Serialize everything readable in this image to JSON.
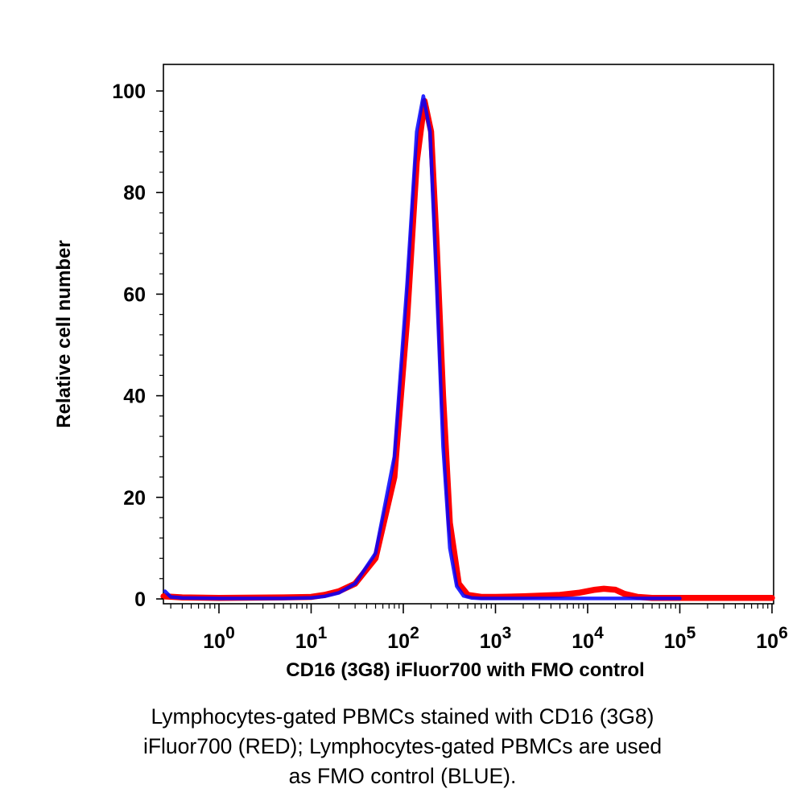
{
  "chart_data": {
    "type": "area",
    "xlabel": "CD16 (3G8) iFluor700 with FMO control",
    "ylabel": "Relative cell number",
    "x_scale": "log",
    "xlim": [
      0.2,
      2000000
    ],
    "ylim": [
      0,
      105
    ],
    "y_ticks": [
      "0",
      "20",
      "40",
      "60",
      "80",
      "100"
    ],
    "x_ticks": [
      {
        "base": "10",
        "exp": "0"
      },
      {
        "base": "10",
        "exp": "1"
      },
      {
        "base": "10",
        "exp": "2"
      },
      {
        "base": "10",
        "exp": "3"
      },
      {
        "base": "10",
        "exp": "4"
      },
      {
        "base": "10",
        "exp": "5"
      },
      {
        "base": "10",
        "exp": "6"
      }
    ],
    "grid": false,
    "series": [
      {
        "color": "#ff0000",
        "x": [
          0.25,
          0.4,
          1,
          5,
          10,
          14,
          20,
          30,
          50,
          80,
          110,
          140,
          170,
          200,
          230,
          270,
          320,
          400,
          500,
          700,
          1000,
          2000,
          5000,
          8000,
          12000,
          15000,
          20000,
          25000,
          35000,
          50000,
          100000,
          1000000,
          2000000
        ],
        "values": [
          0.5,
          0.3,
          0.2,
          0.3,
          0.4,
          0.8,
          1.5,
          3.0,
          8.0,
          24.0,
          55.0,
          86.0,
          98.0,
          92.0,
          70.0,
          40.0,
          15.0,
          3.0,
          0.8,
          0.4,
          0.4,
          0.5,
          0.8,
          1.2,
          1.8,
          2.0,
          1.8,
          1.0,
          0.4,
          0.2,
          0.2,
          0.2,
          0.2
        ]
      },
      {
        "color": "#0000ff",
        "x": [
          0.2,
          0.22,
          0.26,
          0.3,
          0.4,
          1,
          5,
          10,
          14,
          20,
          30,
          50,
          80,
          110,
          140,
          165,
          195,
          230,
          270,
          320,
          380,
          450,
          550,
          700,
          1000,
          10000,
          100000,
          2000000
        ],
        "values": [
          0.5,
          2.5,
          1.5,
          0.4,
          0.2,
          0.1,
          0.1,
          0.2,
          0.5,
          1.2,
          3.0,
          9.0,
          28.0,
          62.0,
          92.0,
          99.0,
          92.0,
          62.0,
          30.0,
          10.0,
          2.5,
          0.6,
          0.2,
          0.1,
          0.1,
          0.1,
          0.1,
          0.1
        ]
      }
    ]
  },
  "caption": {
    "line1": "Lymphocytes-gated PBMCs stained with CD16 (3G8)",
    "line2": "iFluor700 (RED); Lymphocytes-gated PBMCs are used",
    "line3": "as FMO control (BLUE)."
  }
}
